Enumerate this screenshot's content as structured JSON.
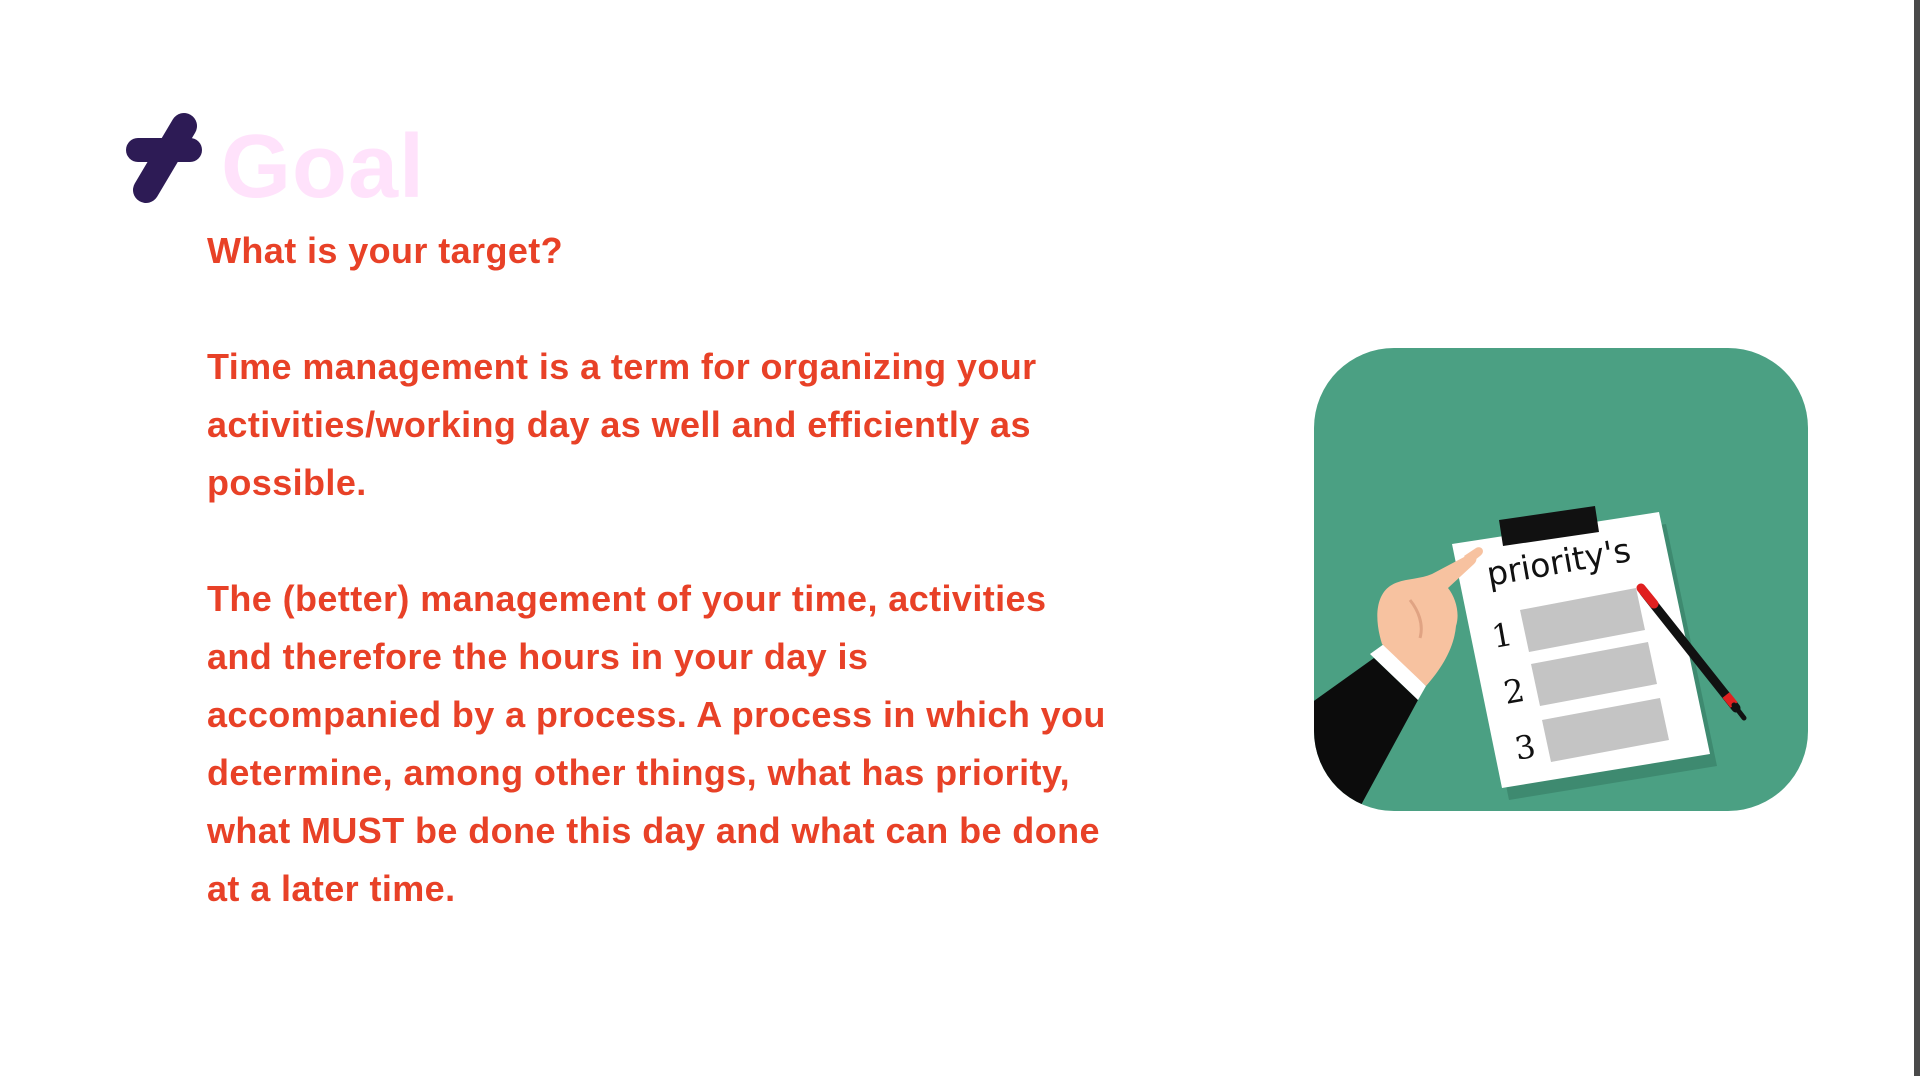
{
  "slide": {
    "logo": "plus-slash-logo",
    "title": "Goal",
    "subtitle": "What is your target?",
    "paragraphs": [
      "Time management is a term for organizing your activities/working day as well and efficiently as possible.",
      "The (better) management of your time, activities and therefore the hours in your day is accompanied by a process. A process in which you determine, among other things, what has priority, what MUST be done this day and what can be done at a later time."
    ]
  },
  "illustration": {
    "clipboard_heading": "priority's",
    "numbers": [
      "1",
      "2",
      "3"
    ],
    "colors": {
      "background": "#4ba083",
      "paper": "#ffffff",
      "clip": "#111111",
      "bars": "#c4c4c4",
      "skin": "#f7c2a0",
      "sleeve": "#0c0c0c",
      "pen_body": "#111111",
      "pen_tip": "#e02020"
    }
  },
  "colors": {
    "title": "#ffe2fb",
    "body_text": "#e84127",
    "logo": "#2d1b55"
  }
}
